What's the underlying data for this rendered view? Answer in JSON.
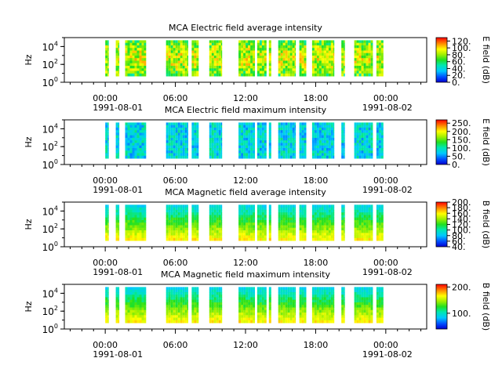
{
  "chart_data": [
    {
      "type": "heatmap",
      "title": "MCA  Electric field average intensity",
      "ylabel": "Hz",
      "y_scale": "log",
      "ylim": [
        1,
        100000
      ],
      "y_ticks": [
        {
          "value": 1,
          "base": "10",
          "exp": "0"
        },
        {
          "value": 100,
          "base": "10",
          "exp": "2"
        },
        {
          "value": 10000,
          "base": "10",
          "exp": "4"
        }
      ],
      "x_range_hours": [
        -3.5,
        27.5
      ],
      "x_ticks": [
        "00:00",
        "06:00",
        "12:00",
        "18:00",
        "00:00"
      ],
      "x_dates": [
        "1991-08-01",
        "1991-08-02"
      ],
      "colorbar_label": "E field (dB)",
      "colorbar_range": [
        0,
        130
      ],
      "colorbar_ticks": [
        "0.",
        "20.",
        "40.",
        "60.",
        "80.",
        "100.",
        "120."
      ],
      "colormap": "rainbow",
      "data_segments_hours": [
        [
          0.0,
          0.3
        ],
        [
          0.9,
          1.2
        ],
        [
          1.7,
          3.5
        ],
        [
          5.2,
          7.1
        ],
        [
          7.4,
          8.0
        ],
        [
          8.9,
          10.0
        ],
        [
          11.4,
          12.8
        ],
        [
          13.0,
          13.8
        ],
        [
          14.0,
          14.2
        ],
        [
          14.8,
          16.3
        ],
        [
          16.6,
          17.2
        ],
        [
          17.7,
          19.6
        ],
        [
          20.2,
          20.5
        ],
        [
          21.3,
          22.9
        ],
        [
          23.2,
          23.8
        ]
      ],
      "intensity_level": "mid-to-high"
    },
    {
      "type": "heatmap",
      "title": "MCA  Electric field maximum intensity",
      "ylabel": "Hz",
      "y_scale": "log",
      "ylim": [
        1,
        100000
      ],
      "y_ticks": [
        {
          "value": 1,
          "base": "10",
          "exp": "0"
        },
        {
          "value": 100,
          "base": "10",
          "exp": "2"
        },
        {
          "value": 10000,
          "base": "10",
          "exp": "4"
        }
      ],
      "x_range_hours": [
        -3.5,
        27.5
      ],
      "x_ticks": [
        "00:00",
        "06:00",
        "12:00",
        "18:00",
        "00:00"
      ],
      "x_dates": [
        "1991-08-01",
        "1991-08-02"
      ],
      "colorbar_label": "E field (dB)",
      "colorbar_range": [
        0,
        270
      ],
      "colorbar_ticks": [
        "0.",
        "50.",
        "100.",
        "150.",
        "200.",
        "250."
      ],
      "colormap": "rainbow",
      "data_segments_hours": [
        [
          0.0,
          0.3
        ],
        [
          0.9,
          1.2
        ],
        [
          1.7,
          3.5
        ],
        [
          5.2,
          7.1
        ],
        [
          7.4,
          8.0
        ],
        [
          8.9,
          10.0
        ],
        [
          11.4,
          12.8
        ],
        [
          13.0,
          13.8
        ],
        [
          14.0,
          14.2
        ],
        [
          14.8,
          16.3
        ],
        [
          16.6,
          17.2
        ],
        [
          17.7,
          19.6
        ],
        [
          20.2,
          20.5
        ],
        [
          21.3,
          22.9
        ],
        [
          23.2,
          23.8
        ]
      ],
      "intensity_level": "low-to-mid"
    },
    {
      "type": "heatmap",
      "title": "MCA  Magnetic field average intensity",
      "ylabel": "Hz",
      "y_scale": "log",
      "ylim": [
        1,
        100000
      ],
      "y_ticks": [
        {
          "value": 1,
          "base": "10",
          "exp": "0"
        },
        {
          "value": 100,
          "base": "10",
          "exp": "2"
        },
        {
          "value": 10000,
          "base": "10",
          "exp": "4"
        }
      ],
      "x_range_hours": [
        -3.5,
        27.5
      ],
      "x_ticks": [
        "00:00",
        "06:00",
        "12:00",
        "18:00",
        "00:00"
      ],
      "x_dates": [
        "1991-08-01",
        "1991-08-02"
      ],
      "colorbar_label": "B field (dB)",
      "colorbar_range": [
        40,
        200
      ],
      "colorbar_ticks": [
        "40.",
        "60.",
        "80.",
        "100.",
        "120.",
        "140.",
        "160.",
        "180.",
        "200."
      ],
      "colormap": "rainbow",
      "data_segments_hours": [
        [
          0.0,
          0.3
        ],
        [
          0.9,
          1.2
        ],
        [
          1.7,
          3.5
        ],
        [
          5.2,
          7.1
        ],
        [
          7.4,
          8.0
        ],
        [
          8.9,
          10.0
        ],
        [
          11.4,
          12.8
        ],
        [
          13.0,
          13.8
        ],
        [
          14.0,
          14.2
        ],
        [
          14.8,
          16.3
        ],
        [
          16.6,
          17.2
        ],
        [
          17.7,
          19.6
        ],
        [
          20.2,
          20.5
        ],
        [
          21.3,
          22.9
        ],
        [
          23.2,
          23.8
        ]
      ],
      "intensity_level": "mid"
    },
    {
      "type": "heatmap",
      "title": "MCA  Magnetic field maximum intensity",
      "ylabel": "Hz",
      "y_scale": "log",
      "ylim": [
        1,
        100000
      ],
      "y_ticks": [
        {
          "value": 1,
          "base": "10",
          "exp": "0"
        },
        {
          "value": 100,
          "base": "10",
          "exp": "2"
        },
        {
          "value": 10000,
          "base": "10",
          "exp": "4"
        }
      ],
      "x_range_hours": [
        -3.5,
        27.5
      ],
      "x_ticks": [
        "00:00",
        "06:00",
        "12:00",
        "18:00",
        "00:00"
      ],
      "x_dates": [
        "1991-08-01",
        "1991-08-02"
      ],
      "colorbar_label": "B field (dB)",
      "colorbar_range": [
        40,
        210
      ],
      "colorbar_ticks": [
        "100.",
        "200."
      ],
      "colormap": "rainbow",
      "data_segments_hours": [
        [
          0.0,
          0.3
        ],
        [
          0.9,
          1.2
        ],
        [
          1.7,
          3.5
        ],
        [
          5.2,
          7.1
        ],
        [
          7.4,
          8.0
        ],
        [
          8.9,
          10.0
        ],
        [
          11.4,
          12.8
        ],
        [
          13.0,
          13.8
        ],
        [
          14.0,
          14.2
        ],
        [
          14.8,
          16.3
        ],
        [
          16.6,
          17.2
        ],
        [
          17.7,
          19.6
        ],
        [
          20.2,
          20.5
        ],
        [
          21.3,
          22.9
        ],
        [
          23.2,
          23.8
        ]
      ],
      "intensity_level": "mid"
    }
  ]
}
